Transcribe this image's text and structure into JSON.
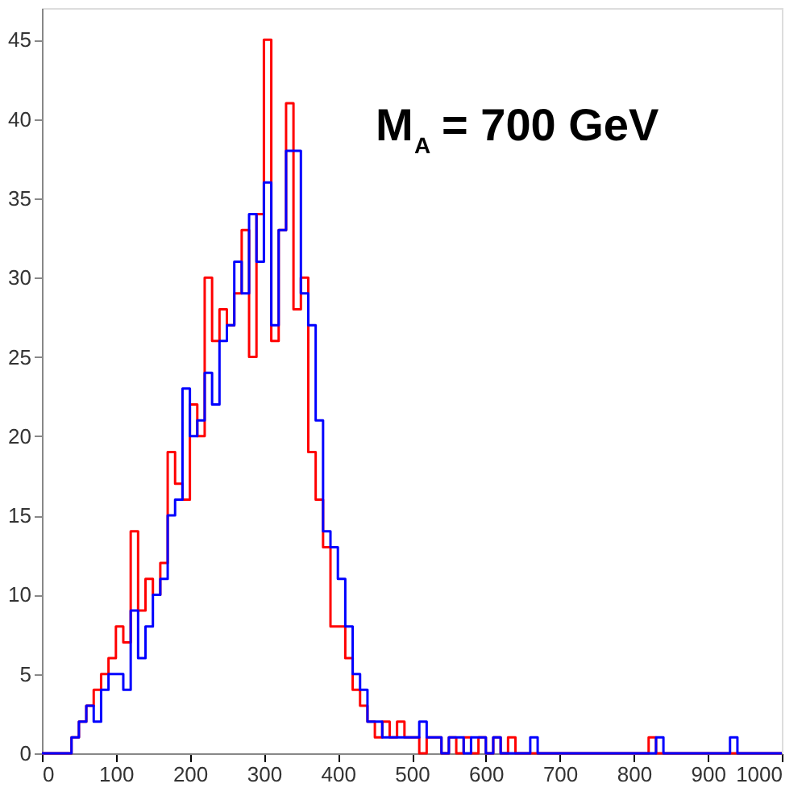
{
  "chart_data": {
    "type": "histogram",
    "bins": [
      0,
      10,
      20,
      30,
      40,
      50,
      60,
      70,
      80,
      90,
      100,
      110,
      120,
      130,
      140,
      150,
      160,
      170,
      180,
      190,
      200,
      210,
      220,
      230,
      240,
      250,
      260,
      270,
      280,
      290,
      300,
      310,
      320,
      330,
      340,
      350,
      360,
      370,
      380,
      390,
      400,
      410,
      420,
      430,
      440,
      450,
      460,
      470,
      480,
      490,
      500,
      510,
      520,
      530,
      540,
      550,
      560,
      570,
      580,
      590,
      600,
      610,
      620,
      630,
      640,
      650,
      660,
      670,
      680,
      690,
      700,
      710,
      720,
      730,
      740,
      750,
      760,
      770,
      780,
      790,
      800,
      810,
      820,
      830,
      840,
      850,
      860,
      870,
      880,
      890,
      900,
      910,
      920,
      930,
      940,
      950,
      960,
      970,
      980,
      990,
      1000
    ],
    "series": [
      {
        "color": "#ff0000",
        "values": [
          0,
          0,
          0,
          0,
          1,
          2,
          3,
          4,
          5,
          6,
          8,
          7,
          14,
          9,
          11,
          10,
          12,
          19,
          17,
          16,
          22,
          20,
          30,
          26,
          28,
          27,
          29,
          33,
          25,
          34,
          45,
          26,
          33,
          41,
          28,
          30,
          19,
          16,
          13,
          8,
          8,
          6,
          4,
          3,
          2,
          1,
          2,
          1,
          2,
          1,
          1,
          0,
          1,
          1,
          0,
          1,
          0,
          1,
          0,
          1,
          0,
          1,
          0,
          1,
          0,
          0,
          0,
          0,
          0,
          0,
          0,
          0,
          0,
          0,
          0,
          0,
          0,
          0,
          0,
          0,
          0,
          0,
          1,
          0,
          0,
          0,
          0,
          0,
          0,
          0,
          0,
          0,
          0,
          0,
          0,
          0,
          0,
          0,
          0,
          0
        ]
      },
      {
        "color": "#0000ff",
        "values": [
          0,
          0,
          0,
          0,
          1,
          2,
          3,
          2,
          4,
          5,
          5,
          4,
          9,
          6,
          8,
          10,
          11,
          15,
          16,
          23,
          20,
          21,
          24,
          22,
          26,
          27,
          31,
          29,
          34,
          31,
          36,
          27,
          33,
          38,
          38,
          29,
          27,
          21,
          14,
          13,
          11,
          8,
          5,
          4,
          2,
          2,
          1,
          1,
          1,
          1,
          1,
          2,
          1,
          1,
          0,
          1,
          1,
          0,
          1,
          1,
          0,
          1,
          0,
          0,
          0,
          0,
          1,
          0,
          0,
          0,
          0,
          0,
          0,
          0,
          0,
          0,
          0,
          0,
          0,
          0,
          0,
          0,
          0,
          1,
          0,
          0,
          0,
          0,
          0,
          0,
          0,
          0,
          0,
          1,
          0,
          0,
          0,
          0,
          0,
          0
        ]
      }
    ],
    "xlim": [
      0,
      1000
    ],
    "xticks": [
      0,
      100,
      200,
      300,
      400,
      500,
      600,
      700,
      800,
      900,
      1000
    ],
    "ylim": [
      0,
      47
    ],
    "yticks": [
      0,
      5,
      10,
      15,
      20,
      25,
      30,
      35,
      40,
      45
    ],
    "annotations": [
      "M$_{A}$ = 700 GeV"
    ],
    "grid": false,
    "legend": false
  }
}
